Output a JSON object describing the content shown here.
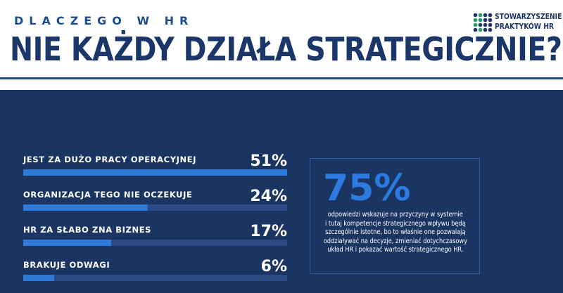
{
  "header": {
    "kicker": "DLACZEGO W HR",
    "title": "NIE KAŻDY DZIAŁA STRATEGICZNIE?",
    "logo_line1": "STOWARZYSZENIE",
    "logo_line2": "PRAKTYKÓW HR"
  },
  "colors": {
    "panel_bg": "#1b3562",
    "bar_fill": "#2e7ad8",
    "bar_track": "#2b4a85",
    "accent": "#2d7be0",
    "logo_green": "#2a9d6a",
    "logo_blue": "#1b3668"
  },
  "chart_data": {
    "type": "bar",
    "orientation": "horizontal",
    "categories": [
      "JEST ZA DUŻO PRACY OPERACYJNEJ",
      "ORGANIZACJA TEGO NIE OCZEKUJE",
      "HR ZA SŁABO ZNA BIZNES",
      "BRAKUJE ODWAGI"
    ],
    "values": [
      51,
      24,
      17,
      6
    ],
    "value_labels": [
      "51%",
      "24%",
      "17%",
      "6%"
    ],
    "xlim": [
      0,
      51
    ],
    "unit": "%",
    "title": "",
    "xlabel": "",
    "ylabel": ""
  },
  "stat": {
    "value": "75%",
    "lines": [
      "odpowiedzi wskazuje na przyczyny w systemie",
      "i tutaj kompetencje strategicznego wpływu będą",
      "szczególnie istotne, bo to właśnie one pozwalają",
      "oddziaływać na decyzje, zmieniać dotychczasowy",
      "układ HR i pokazać wartość strategicznego HR."
    ]
  }
}
